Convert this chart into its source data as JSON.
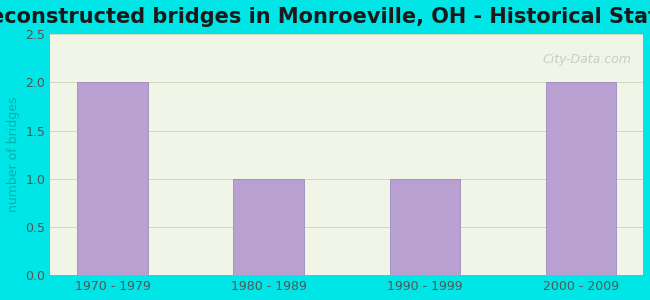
{
  "title": "Reconstructed bridges in Monroeville, OH - Historical Statistics",
  "categories": [
    "1970 - 1979",
    "1980 - 1989",
    "1990 - 1999",
    "2000 - 2009"
  ],
  "values": [
    2,
    1,
    1,
    2
  ],
  "bar_color": "#b8a0d0",
  "bar_edge_color": "#9080b8",
  "ylabel": "number of bridges",
  "ylim": [
    0,
    2.5
  ],
  "yticks": [
    0,
    0.5,
    1,
    1.5,
    2,
    2.5
  ],
  "background_color": "#00e5e5",
  "plot_bg_color": "#f0f5e8",
  "title_fontsize": 15,
  "title_color": "#1a1a1a",
  "axis_label_color": "#00b0b0",
  "tick_color": "#555555",
  "watermark_text": "City-Data.com",
  "watermark_color": "#c0c8c0"
}
